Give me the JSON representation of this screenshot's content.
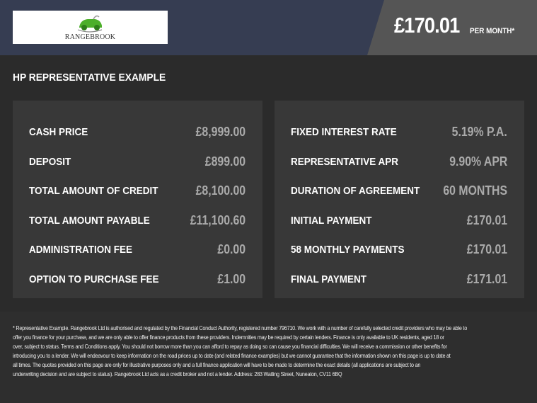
{
  "header": {
    "logo_text": "RANGEBROOK",
    "price": "£170.01",
    "per_month": "PER MONTH*",
    "colors": {
      "header_bg": "#363d52",
      "price_panel_bg": "#555555",
      "logo_green": "#4caf2a"
    }
  },
  "title": "HP REPRESENTATIVE EXAMPLE",
  "left_panel": [
    {
      "label": "CASH PRICE",
      "value": "£8,999.00"
    },
    {
      "label": "DEPOSIT",
      "value": "£899.00"
    },
    {
      "label": "TOTAL AMOUNT OF CREDIT",
      "value": "£8,100.00"
    },
    {
      "label": "TOTAL AMOUNT PAYABLE",
      "value": "£11,100.60"
    },
    {
      "label": "ADMINISTRATION FEE",
      "value": "£0.00"
    },
    {
      "label": "OPTION TO PURCHASE FEE",
      "value": "£1.00"
    }
  ],
  "right_panel": [
    {
      "label": "FIXED INTEREST RATE",
      "value": "5.19% P.A."
    },
    {
      "label": "REPRESENTATIVE APR",
      "value": "9.90% APR"
    },
    {
      "label": "DURATION OF AGREEMENT",
      "value": "60 MONTHS"
    },
    {
      "label": "INITIAL PAYMENT",
      "value": "£170.01"
    },
    {
      "label": "58 MONTHLY PAYMENTS",
      "value": "£170.01"
    },
    {
      "label": "FINAL PAYMENT",
      "value": "£171.01"
    }
  ],
  "footer_lines": [
    "* Representative Example. Rangebrook Ltd is authorised and regulated by the Financial Conduct Authority, registered number 796710. We work with a number of carefully selected credit providers who may be able to",
    "offer you finance for your purchase, and we are only able to offer finance products from these providers. Indemnities may be required by certain lenders. Finance is only available to UK residents, aged 18 or",
    "over, subject to status. Terms and Conditions apply. You should not borrow more than you can afford to repay as doing so can cause you financial difficulties. We will receive a commission or other benefits for",
    "introducing you to a lender. We will endeavour to keep information on the road prices up to date (and related finance examples) but we cannot guarantee that the information shown on this page is up to date at",
    "all times. The quotes provided on this page are only for illustrative purposes only and a full finance application will have to be made to determine the exact details (all applications are subject to an",
    "underwriting decision and are subject to status). Rangebrook Ltd acts as a credit broker and not a lender. Address:  283 Watling Street, Nuneaton, CV11 6BQ"
  ]
}
